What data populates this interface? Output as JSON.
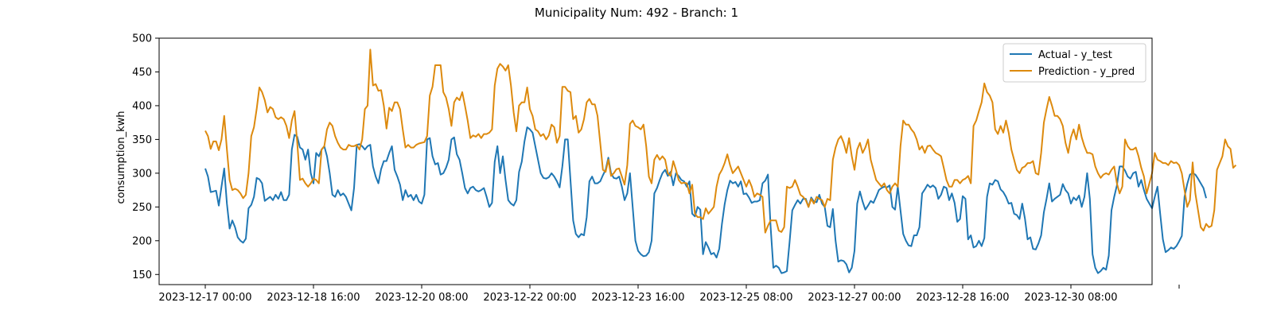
{
  "chart_data": {
    "type": "line",
    "title": "Municipality Num: 492 - Branch: 1",
    "ylabel": "consumption_kwh",
    "xlabel": "",
    "ylim": [
      135,
      500
    ],
    "yticks": [
      150,
      200,
      250,
      300,
      350,
      400,
      450,
      500
    ],
    "x_start": "2023-12-17 00:00",
    "x_step_hours": 1,
    "xticks": [
      {
        "label": "2023-12-17 00:00",
        "hour": 0
      },
      {
        "label": "2023-12-18 16:00",
        "hour": 40
      },
      {
        "label": "2023-12-20 08:00",
        "hour": 80
      },
      {
        "label": "2023-12-22 00:00",
        "hour": 120
      },
      {
        "label": "2023-12-23 16:00",
        "hour": 160
      },
      {
        "label": "2023-12-25 08:00",
        "hour": 200
      },
      {
        "label": "2023-12-27 00:00",
        "hour": 240
      },
      {
        "label": "2023-12-28 16:00",
        "hour": 280
      },
      {
        "label": "2023-12-30 08:00",
        "hour": 320
      },
      {
        "label": "",
        "hour": 360
      }
    ],
    "grid": false,
    "legend_position": "top-right",
    "series": [
      {
        "name": "Actual - y_test",
        "color": "#1f77b4",
        "values": [
          307,
          295,
          272,
          273,
          274,
          252,
          280,
          307,
          255,
          218,
          230,
          220,
          205,
          200,
          197,
          203,
          248,
          253,
          265,
          293,
          291,
          285,
          259,
          262,
          265,
          260,
          268,
          262,
          272,
          260,
          260,
          268,
          335,
          357,
          354,
          338,
          335,
          320,
          335,
          300,
          285,
          330,
          325,
          335,
          340,
          325,
          300,
          268,
          265,
          275,
          267,
          270,
          265,
          255,
          245,
          278,
          342,
          343,
          340,
          335,
          340,
          342,
          310,
          295,
          285,
          306,
          318,
          318,
          330,
          340,
          305,
          295,
          283,
          260,
          275,
          265,
          268,
          260,
          268,
          258,
          255,
          268,
          350,
          352,
          325,
          313,
          315,
          298,
          300,
          308,
          320,
          350,
          353,
          328,
          320,
          300,
          278,
          270,
          278,
          280,
          275,
          273,
          275,
          278,
          265,
          250,
          256,
          317,
          340,
          300,
          325,
          290,
          260,
          255,
          252,
          260,
          302,
          317,
          347,
          368,
          365,
          360,
          340,
          320,
          300,
          293,
          292,
          294,
          300,
          295,
          288,
          279,
          310,
          350,
          350,
          290,
          230,
          210,
          205,
          210,
          208,
          235,
          288,
          295,
          285,
          285,
          288,
          297,
          305,
          323,
          300,
          293,
          292,
          295,
          280,
          260,
          270,
          300,
          250,
          200,
          185,
          180,
          177,
          178,
          183,
          200,
          270,
          278,
          290,
          300,
          305,
          296,
          302,
          282,
          300,
          296,
          290,
          288,
          280,
          288,
          240,
          236,
          250,
          246,
          180,
          198,
          190,
          180,
          182,
          175,
          188,
          225,
          254,
          275,
          289,
          285,
          287,
          280,
          288,
          269,
          270,
          264,
          256,
          258,
          258,
          260,
          285,
          289,
          298,
          220,
          160,
          163,
          160,
          152,
          153,
          155,
          198,
          245,
          253,
          260,
          255,
          262,
          262,
          250,
          264,
          258,
          257,
          268,
          255,
          250,
          222,
          220,
          247,
          200,
          169,
          171,
          170,
          165,
          153,
          160,
          185,
          255,
          273,
          258,
          246,
          252,
          259,
          256,
          265,
          275,
          278,
          280,
          279,
          282,
          250,
          246,
          280,
          245,
          210,
          200,
          193,
          192,
          208,
          208,
          220,
          270,
          276,
          283,
          279,
          282,
          278,
          262,
          268,
          280,
          278,
          260,
          270,
          256,
          228,
          232,
          266,
          262,
          202,
          208,
          190,
          192,
          200,
          192,
          204,
          265,
          285,
          283,
          290,
          288,
          276,
          272,
          265,
          255,
          256,
          240,
          238,
          232,
          255,
          233,
          202,
          205,
          188,
          187,
          196,
          208,
          242,
          262,
          285,
          258,
          262,
          265,
          268,
          284,
          275,
          270,
          255,
          264,
          260,
          267,
          250,
          265,
          300,
          262,
          180,
          160,
          152,
          155,
          160,
          157,
          178,
          245,
          265,
          282,
          310,
          310,
          304,
          295,
          292,
          300,
          302,
          280,
          290,
          275,
          262,
          255,
          248,
          265,
          280,
          240,
          202,
          183,
          186,
          190,
          188,
          192,
          199,
          207,
          265,
          284,
          298,
          300,
          298,
          292,
          285,
          278,
          263
        ]
      },
      {
        "name": "Prediction - y_pred",
        "color": "#dd8a0e",
        "values": [
          363,
          355,
          336,
          347,
          347,
          334,
          350,
          385,
          335,
          290,
          275,
          277,
          275,
          270,
          263,
          268,
          300,
          355,
          368,
          395,
          427,
          420,
          408,
          390,
          398,
          395,
          383,
          380,
          383,
          380,
          370,
          352,
          378,
          392,
          345,
          290,
          292,
          285,
          280,
          285,
          292,
          290,
          285,
          335,
          340,
          365,
          375,
          370,
          355,
          345,
          338,
          335,
          335,
          342,
          340,
          340,
          342,
          335,
          350,
          395,
          400,
          483,
          430,
          432,
          422,
          423,
          400,
          366,
          397,
          392,
          405,
          405,
          395,
          365,
          338,
          342,
          338,
          338,
          342,
          344,
          345,
          346,
          355,
          415,
          428,
          460,
          460,
          460,
          420,
          412,
          395,
          370,
          405,
          412,
          408,
          420,
          400,
          378,
          352,
          356,
          354,
          358,
          352,
          358,
          358,
          360,
          365,
          430,
          455,
          462,
          458,
          452,
          460,
          430,
          390,
          362,
          400,
          405,
          405,
          427,
          395,
          385,
          365,
          362,
          355,
          358,
          350,
          356,
          372,
          368,
          345,
          355,
          428,
          428,
          422,
          420,
          380,
          385,
          360,
          365,
          380,
          405,
          410,
          402,
          402,
          385,
          345,
          305,
          302,
          320,
          296,
          300,
          306,
          307,
          295,
          283,
          312,
          373,
          378,
          370,
          368,
          365,
          372,
          340,
          295,
          285,
          320,
          327,
          320,
          325,
          320,
          300,
          296,
          318,
          305,
          290,
          285,
          286,
          285,
          270,
          283,
          240,
          235,
          235,
          232,
          248,
          240,
          245,
          250,
          280,
          298,
          305,
          315,
          328,
          312,
          300,
          305,
          310,
          300,
          290,
          280,
          290,
          280,
          265,
          270,
          268,
          265,
          212,
          222,
          230,
          230,
          230,
          215,
          213,
          220,
          280,
          278,
          280,
          290,
          280,
          268,
          265,
          260,
          250,
          262,
          255,
          265,
          262,
          260,
          250,
          262,
          260,
          320,
          338,
          350,
          355,
          345,
          330,
          352,
          325,
          305,
          335,
          345,
          330,
          338,
          350,
          320,
          305,
          290,
          285,
          280,
          285,
          275,
          270,
          280,
          285,
          280,
          340,
          378,
          372,
          372,
          365,
          360,
          350,
          335,
          340,
          330,
          340,
          341,
          335,
          330,
          328,
          325,
          308,
          290,
          280,
          280,
          290,
          290,
          285,
          290,
          292,
          296,
          285,
          370,
          378,
          392,
          405,
          433,
          420,
          415,
          405,
          365,
          358,
          370,
          360,
          378,
          360,
          335,
          320,
          305,
          300,
          308,
          310,
          315,
          315,
          318,
          300,
          298,
          330,
          375,
          395,
          413,
          400,
          385,
          385,
          380,
          370,
          345,
          330,
          353,
          365,
          350,
          372,
          353,
          340,
          330,
          330,
          328,
          310,
          300,
          293,
          298,
          300,
          298,
          305,
          310,
          285,
          270,
          280,
          350,
          340,
          335,
          335,
          338,
          325,
          308,
          295,
          270,
          285,
          300,
          330,
          320,
          318,
          315,
          315,
          312,
          318,
          315,
          316,
          312,
          300,
          275,
          250,
          260,
          316,
          270,
          245,
          220,
          215,
          225,
          220,
          222,
          245,
          305,
          315,
          325,
          350,
          340,
          336,
          308,
          312
        ]
      }
    ]
  }
}
